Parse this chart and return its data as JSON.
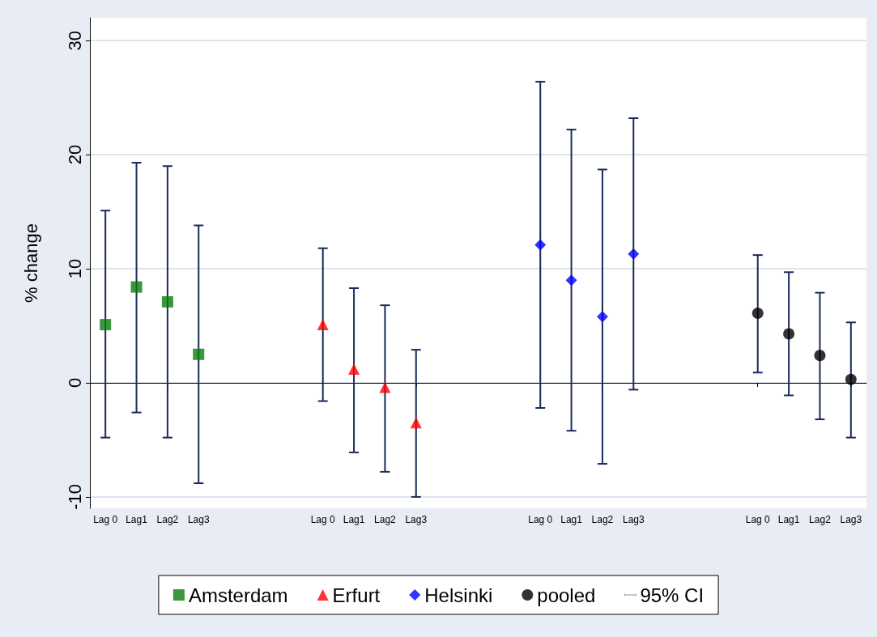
{
  "chart_data": {
    "type": "scatter",
    "ylabel": "% change",
    "categories": [
      "Lag 0",
      "Lag1",
      "Lag2",
      "Lag3",
      null,
      null,
      null,
      "Lag 0",
      "Lag1",
      "Lag2",
      "Lag3",
      null,
      null,
      null,
      "Lag 0",
      "Lag1",
      "Lag2",
      "Lag3",
      null,
      null,
      null,
      "Lag 0",
      "Lag1",
      "Lag2",
      "Lag3"
    ],
    "series": [
      {
        "name": "Amsterdam",
        "color": "#0a7d0a",
        "marker": "square",
        "values": [
          5.1,
          8.4,
          7.1,
          2.5,
          null,
          null,
          null,
          null,
          null,
          null,
          null,
          null,
          null,
          null,
          null,
          null,
          null,
          null,
          null,
          null,
          null,
          null,
          null,
          null,
          null
        ],
        "errors": [
          [
            -4.8,
            15.1
          ],
          [
            -2.6,
            19.3
          ],
          [
            -4.8,
            19.0
          ],
          [
            -8.8,
            13.8
          ],
          null,
          null,
          null,
          null,
          null,
          null,
          null,
          null,
          null,
          null,
          null,
          null,
          null,
          null,
          null,
          null,
          null,
          null,
          null,
          null,
          null
        ]
      },
      {
        "name": "Erfurt",
        "color": "#ff0000",
        "marker": "triangle",
        "values": [
          null,
          null,
          null,
          null,
          null,
          null,
          null,
          5.1,
          1.2,
          -0.4,
          -3.5,
          null,
          null,
          null,
          null,
          null,
          null,
          null,
          null,
          null,
          null,
          null,
          null,
          null,
          null
        ],
        "errors": [
          null,
          null,
          null,
          null,
          null,
          null,
          null,
          [
            -1.6,
            11.8
          ],
          [
            -6.1,
            8.3
          ],
          [
            -7.8,
            6.8
          ],
          [
            -10.0,
            2.9
          ],
          null,
          null,
          null,
          null,
          null,
          null,
          null,
          null,
          null,
          null,
          null,
          null,
          null,
          null
        ]
      },
      {
        "name": "Helsinki",
        "color": "#0000ff",
        "marker": "diamond",
        "values": [
          null,
          null,
          null,
          null,
          null,
          null,
          null,
          null,
          null,
          null,
          null,
          null,
          null,
          null,
          12.1,
          9.0,
          5.8,
          11.3,
          null,
          null,
          null,
          null,
          null,
          null,
          null
        ],
        "errors": [
          null,
          null,
          null,
          null,
          null,
          null,
          null,
          null,
          null,
          null,
          null,
          null,
          null,
          null,
          [
            -2.2,
            26.4
          ],
          [
            -4.2,
            22.2
          ],
          [
            -7.1,
            18.7
          ],
          [
            -0.6,
            23.2
          ],
          null,
          null,
          null,
          null,
          null,
          null,
          null
        ]
      },
      {
        "name": "pooled",
        "color": "#000000",
        "marker": "circle",
        "values": [
          null,
          null,
          null,
          null,
          null,
          null,
          null,
          null,
          null,
          null,
          null,
          null,
          null,
          null,
          null,
          null,
          null,
          null,
          null,
          null,
          null,
          6.1,
          4.3,
          2.4,
          0.3
        ],
        "errors": [
          null,
          null,
          null,
          null,
          null,
          null,
          null,
          null,
          null,
          null,
          null,
          null,
          null,
          null,
          null,
          null,
          null,
          null,
          null,
          null,
          null,
          [
            0.9,
            11.2
          ],
          [
            -1.1,
            9.7
          ],
          [
            -3.2,
            7.9
          ],
          [
            -4.8,
            5.3
          ]
        ]
      }
    ],
    "annotations": [
      "95% CI"
    ],
    "ylim": [
      -11,
      32
    ],
    "yticks": [
      -10,
      0,
      10,
      20,
      30
    ],
    "grid": "y",
    "legend": "bottom"
  }
}
